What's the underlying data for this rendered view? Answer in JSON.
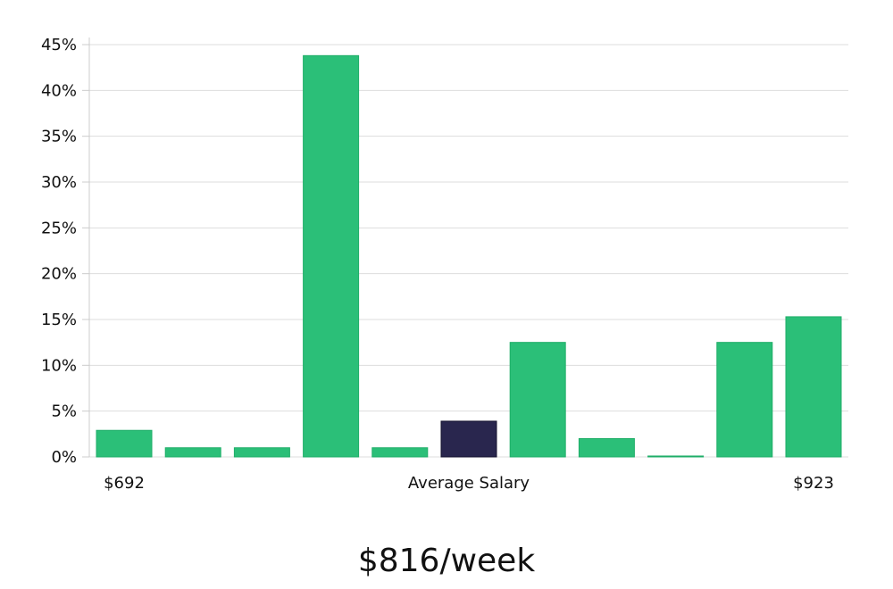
{
  "chart_data": {
    "type": "bar",
    "values": [
      2.9,
      1.0,
      1.0,
      43.8,
      1.0,
      3.9,
      12.5,
      2.0,
      0.1,
      12.5,
      15.3
    ],
    "highlight_index": 5,
    "ylim": [
      0,
      45
    ],
    "yticks": [
      "0%",
      "5%",
      "10%",
      "15%",
      "20%",
      "25%",
      "30%",
      "35%",
      "40%",
      "45%"
    ],
    "ytick_values": [
      0,
      5,
      10,
      15,
      20,
      25,
      30,
      35,
      40,
      45
    ],
    "grid": true,
    "x_labels": {
      "left": "$692",
      "center": "Average Salary",
      "right": "$923"
    },
    "caption": "$816/week",
    "colors": {
      "bar": "#2bbf78",
      "bar_edge": "#1fae68",
      "highlight": "#29264e",
      "highlight_edge": "#14122e",
      "grid": "#dddddd",
      "axis": "#cccccc"
    }
  }
}
